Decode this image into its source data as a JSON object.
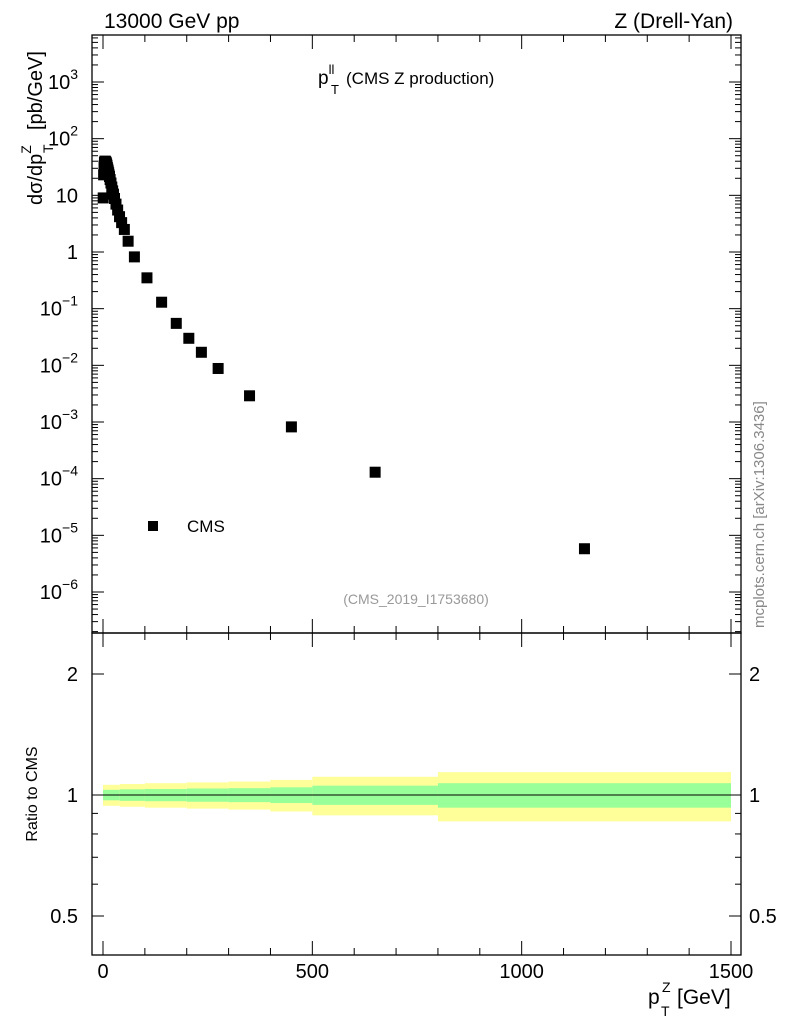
{
  "header": {
    "left": "13000 GeV pp",
    "right": "Z (Drell-Yan)"
  },
  "side_label": "mcplots.cern.ch [arXiv:1306.3436]",
  "chart_data": [
    {
      "type": "scatter",
      "title_main": "p",
      "title_sup": "ll",
      "title_sub": "T",
      "title_rest": "(CMS Z production)",
      "watermark": "(CMS_2019_I1753680)",
      "ylabel_main": "dσ/dp",
      "ylabel_sup": "Z",
      "ylabel_sub": "T",
      "ylabel_rest": "[pb/GeV]",
      "yscale": "log",
      "xlim": [
        -30,
        1510
      ],
      "ylim": [
        2e-07,
        6000
      ],
      "x_ticks": [
        0,
        500,
        1000,
        1500
      ],
      "y_tick_labels": [
        {
          "value": 1000,
          "base": "10",
          "exp": "3"
        },
        {
          "value": 100,
          "base": "10",
          "exp": "2"
        },
        {
          "value": 10,
          "base": "10",
          "exp": ""
        },
        {
          "value": 1,
          "base": "1",
          "exp": ""
        },
        {
          "value": 0.1,
          "base": "10",
          "exp": "−1"
        },
        {
          "value": 0.01,
          "base": "10",
          "exp": "−2"
        },
        {
          "value": 0.001,
          "base": "10",
          "exp": "−3"
        },
        {
          "value": 0.0001,
          "base": "10",
          "exp": "−4"
        },
        {
          "value": 1e-05,
          "base": "10",
          "exp": "−5"
        },
        {
          "value": 1e-06,
          "base": "10",
          "exp": "−6"
        }
      ],
      "legend": {
        "label": "CMS",
        "placement": "lower-left"
      },
      "series": [
        {
          "name": "CMS",
          "x": [
            0.5,
            1.5,
            2.5,
            3.5,
            4.5,
            5.5,
            6.5,
            7.5,
            8.5,
            9.5,
            10.5,
            11.5,
            12.5,
            13.5,
            14.5,
            15.5,
            17,
            19,
            21,
            23,
            25,
            27.5,
            31,
            35,
            39.5,
            44.5,
            51,
            60,
            75,
            105,
            140,
            175,
            205,
            235,
            275,
            350,
            450,
            650,
            1150
          ],
          "y": [
            9,
            23,
            33,
            38,
            40,
            40,
            39,
            38,
            36,
            34,
            31,
            29,
            27,
            25,
            23,
            21.5,
            19,
            16.5,
            14,
            12,
            10.5,
            8.8,
            7.0,
            5.5,
            4.2,
            3.3,
            2.5,
            1.55,
            0.82,
            0.35,
            0.13,
            0.055,
            0.03,
            0.017,
            0.0088,
            0.0029,
            0.00082,
            0.00013,
            5.8e-06
          ]
        }
      ]
    },
    {
      "type": "area",
      "ylabel": "Ratio to CMS",
      "yscale": "log",
      "xlim": [
        -30,
        1510
      ],
      "ylim": [
        0.4,
        2.35
      ],
      "x_ticks": [
        0,
        500,
        1000,
        1500
      ],
      "y_ticks": [
        0.5,
        1,
        2
      ],
      "y_tick_labels": [
        "0.5",
        "1",
        "2"
      ],
      "xlabel_main": "p",
      "xlabel_sup": "Z",
      "xlabel_sub": "T",
      "xlabel_rest": "[GeV]",
      "reference": 1,
      "band_colors": {
        "outer": "#ffff99",
        "inner": "#99ff99"
      },
      "bands": [
        {
          "x0": 0,
          "x1": 40,
          "outer": [
            0.94,
            1.06
          ],
          "inner": [
            0.97,
            1.03
          ]
        },
        {
          "x0": 40,
          "x1": 100,
          "outer": [
            0.935,
            1.065
          ],
          "inner": [
            0.967,
            1.033
          ]
        },
        {
          "x0": 100,
          "x1": 200,
          "outer": [
            0.93,
            1.07
          ],
          "inner": [
            0.965,
            1.035
          ]
        },
        {
          "x0": 200,
          "x1": 300,
          "outer": [
            0.925,
            1.075
          ],
          "inner": [
            0.962,
            1.038
          ]
        },
        {
          "x0": 300,
          "x1": 400,
          "outer": [
            0.92,
            1.08
          ],
          "inner": [
            0.96,
            1.04
          ]
        },
        {
          "x0": 400,
          "x1": 500,
          "outer": [
            0.91,
            1.09
          ],
          "inner": [
            0.955,
            1.045
          ]
        },
        {
          "x0": 500,
          "x1": 800,
          "outer": [
            0.89,
            1.11
          ],
          "inner": [
            0.945,
            1.055
          ]
        },
        {
          "x0": 800,
          "x1": 1500,
          "outer": [
            0.86,
            1.14
          ],
          "inner": [
            0.93,
            1.07
          ]
        }
      ]
    }
  ]
}
